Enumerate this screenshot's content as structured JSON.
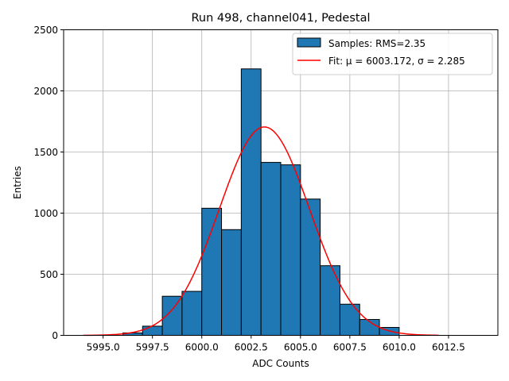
{
  "chart_data": {
    "type": "bar",
    "title": "Run 498, channel041, Pedestal",
    "xlabel": "ADC Counts",
    "ylabel": "Entries",
    "xlim": [
      5993.0,
      6015.0
    ],
    "ylim": [
      0,
      2500
    ],
    "grid": true,
    "legend_placement": "top-right",
    "xticks": [
      5995.0,
      5997.5,
      6000.0,
      6002.5,
      6005.0,
      6007.5,
      6010.0,
      6012.5
    ],
    "xtick_labels": [
      "5995.0",
      "5997.5",
      "6000.0",
      "6002.5",
      "6005.0",
      "6007.5",
      "6010.0",
      "6012.5"
    ],
    "yticks": [
      0,
      500,
      1000,
      1500,
      2000,
      2500
    ],
    "ytick_labels": [
      "0",
      "500",
      "1000",
      "1500",
      "2000",
      "2500"
    ],
    "bins": [
      {
        "x0": 5996.0,
        "x1": 5997.0,
        "count": 20
      },
      {
        "x0": 5997.0,
        "x1": 5998.0,
        "count": 75
      },
      {
        "x0": 5998.0,
        "x1": 5999.0,
        "count": 320
      },
      {
        "x0": 5999.0,
        "x1": 6000.0,
        "count": 360
      },
      {
        "x0": 6000.0,
        "x1": 6001.0,
        "count": 1040
      },
      {
        "x0": 6001.0,
        "x1": 6002.0,
        "count": 865
      },
      {
        "x0": 6002.0,
        "x1": 6003.0,
        "count": 2180
      },
      {
        "x0": 6003.0,
        "x1": 6004.0,
        "count": 1415
      },
      {
        "x0": 6004.0,
        "x1": 6005.0,
        "count": 1395
      },
      {
        "x0": 6005.0,
        "x1": 6006.0,
        "count": 1115
      },
      {
        "x0": 6006.0,
        "x1": 6007.0,
        "count": 570
      },
      {
        "x0": 6007.0,
        "x1": 6008.0,
        "count": 255
      },
      {
        "x0": 6008.0,
        "x1": 6009.0,
        "count": 130
      },
      {
        "x0": 6009.0,
        "x1": 6010.0,
        "count": 65
      }
    ],
    "fit": {
      "mu": 6003.172,
      "sigma": 2.285,
      "peak": 1705,
      "x_range": [
        5994.0,
        6012.0
      ]
    },
    "series": [
      {
        "name": "Samples: RMS=2.35",
        "kind": "histogram",
        "color": "#1f77b4",
        "edge_color": "#000000"
      },
      {
        "name": "Fit: μ = 6003.172, σ = 2.285",
        "kind": "line",
        "color": "#ff0000"
      }
    ]
  }
}
